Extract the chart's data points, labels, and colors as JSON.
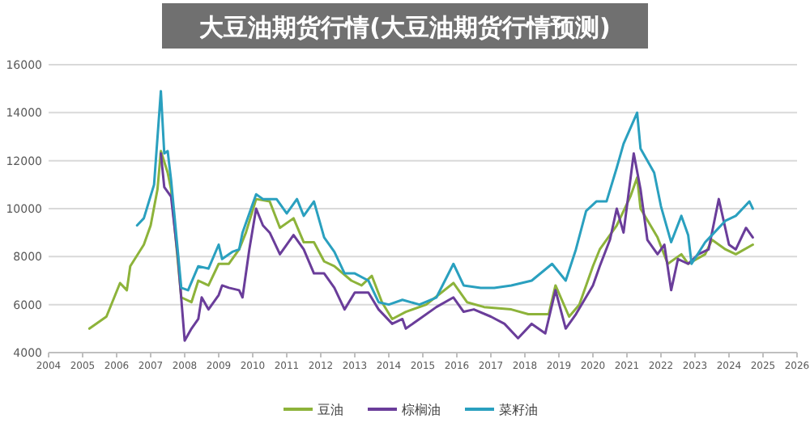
{
  "chart_data": {
    "type": "line",
    "title": "大豆油期货行情(大豆油期货行情预测)",
    "xlim": [
      2004,
      2026
    ],
    "ylim": [
      4000,
      16000
    ],
    "yticks": [
      4000,
      6000,
      8000,
      10000,
      12000,
      14000,
      16000
    ],
    "xticks": [
      2004,
      2005,
      2006,
      2007,
      2008,
      2009,
      2010,
      2011,
      2012,
      2013,
      2014,
      2015,
      2016,
      2017,
      2018,
      2019,
      2020,
      2021,
      2022,
      2023,
      2024,
      2025,
      2026
    ],
    "grid": "y",
    "legend": "bottom",
    "marker": "none",
    "line_style": "solid",
    "series": [
      {
        "name": "豆油",
        "color": "#8db33a",
        "x": [
          2005.2,
          2005.7,
          2006.1,
          2006.3,
          2006.4,
          2006.8,
          2007.0,
          2007.2,
          2007.3,
          2007.5,
          2007.6,
          2007.9,
          2008.2,
          2008.4,
          2008.7,
          2009.0,
          2009.3,
          2009.6,
          2009.8,
          2010.1,
          2010.5,
          2010.8,
          2011.2,
          2011.5,
          2011.8,
          2012.1,
          2012.4,
          2012.9,
          2013.2,
          2013.5,
          2013.8,
          2014.1,
          2014.5,
          2015.1,
          2015.9,
          2016.3,
          2016.8,
          2017.6,
          2018.1,
          2018.7,
          2018.9,
          2019.3,
          2019.6,
          2020.0,
          2020.2,
          2020.7,
          2021.1,
          2021.3,
          2021.4,
          2021.9,
          2022.2,
          2022.6,
          2022.8,
          2023.3,
          2023.5,
          2023.9,
          2024.2,
          2024.7
        ],
        "values": [
          5000,
          5500,
          6900,
          6600,
          7600,
          8500,
          9300,
          10800,
          12400,
          11500,
          10800,
          6300,
          6100,
          7000,
          6800,
          7700,
          7700,
          8300,
          9000,
          10400,
          10300,
          9200,
          9600,
          8600,
          8600,
          7800,
          7600,
          7000,
          6800,
          7200,
          6100,
          5400,
          5700,
          6000,
          6900,
          6100,
          5900,
          5800,
          5600,
          5600,
          6800,
          5500,
          6000,
          7600,
          8300,
          9300,
          10500,
          11300,
          10000,
          8800,
          7700,
          8100,
          7700,
          8100,
          8700,
          8300,
          8100,
          8500
        ]
      },
      {
        "name": "棕榈油",
        "color": "#6a3d9a",
        "x": [
          2007.3,
          2007.4,
          2007.6,
          2007.8,
          2008.0,
          2008.2,
          2008.4,
          2008.5,
          2008.7,
          2009.0,
          2009.1,
          2009.3,
          2009.6,
          2009.7,
          2009.9,
          2010.1,
          2010.3,
          2010.5,
          2010.8,
          2011.2,
          2011.5,
          2011.8,
          2012.1,
          2012.4,
          2012.7,
          2013.0,
          2013.4,
          2013.7,
          2014.1,
          2014.4,
          2014.5,
          2014.9,
          2015.4,
          2015.9,
          2016.2,
          2016.5,
          2017.0,
          2017.4,
          2017.8,
          2018.2,
          2018.6,
          2018.9,
          2019.2,
          2019.5,
          2020.0,
          2020.2,
          2020.5,
          2020.7,
          2020.9,
          2021.2,
          2021.4,
          2021.6,
          2021.9,
          2022.1,
          2022.3,
          2022.5,
          2022.8,
          2023.1,
          2023.4,
          2023.7,
          2024.0,
          2024.2,
          2024.5,
          2024.7
        ],
        "values": [
          12300,
          10900,
          10500,
          8000,
          4500,
          5000,
          5400,
          6300,
          5800,
          6400,
          6800,
          6700,
          6600,
          6300,
          8300,
          10000,
          9300,
          9000,
          8100,
          8900,
          8300,
          7300,
          7300,
          6700,
          5800,
          6500,
          6500,
          5800,
          5200,
          5400,
          5000,
          5400,
          5900,
          6300,
          5700,
          5800,
          5500,
          5200,
          4600,
          5200,
          4800,
          6600,
          5000,
          5600,
          6800,
          7600,
          8700,
          10000,
          9000,
          12300,
          10800,
          8700,
          8100,
          8500,
          6600,
          7900,
          7700,
          8100,
          8300,
          10400,
          8500,
          8300,
          9200,
          8800
        ]
      },
      {
        "name": "菜籽油",
        "color": "#2aa0bf",
        "x": [
          2006.6,
          2006.8,
          2007.1,
          2007.3,
          2007.4,
          2007.5,
          2007.6,
          2007.9,
          2008.1,
          2008.4,
          2008.7,
          2009.0,
          2009.1,
          2009.4,
          2009.6,
          2009.7,
          2010.1,
          2010.3,
          2010.7,
          2011.0,
          2011.3,
          2011.5,
          2011.8,
          2012.1,
          2012.4,
          2012.7,
          2013.0,
          2013.4,
          2013.7,
          2014.0,
          2014.4,
          2014.9,
          2015.4,
          2015.9,
          2016.2,
          2016.7,
          2017.1,
          2017.6,
          2018.2,
          2018.8,
          2019.2,
          2019.5,
          2019.8,
          2020.1,
          2020.4,
          2020.7,
          2020.9,
          2021.3,
          2021.4,
          2021.8,
          2022.0,
          2022.3,
          2022.6,
          2022.8,
          2022.9,
          2023.3,
          2023.5,
          2023.9,
          2024.2,
          2024.6,
          2024.7
        ],
        "values": [
          9300,
          9600,
          11000,
          14900,
          12300,
          12400,
          11200,
          6700,
          6600,
          7600,
          7500,
          8500,
          7900,
          8200,
          8300,
          9000,
          10600,
          10400,
          10400,
          9800,
          10400,
          9700,
          10300,
          8800,
          8200,
          7300,
          7300,
          7000,
          6100,
          6000,
          6200,
          6000,
          6300,
          7700,
          6800,
          6700,
          6700,
          6800,
          7000,
          7700,
          7000,
          8300,
          9900,
          10300,
          10300,
          11700,
          12700,
          14000,
          12500,
          11500,
          10100,
          8600,
          9700,
          8900,
          7700,
          8600,
          8900,
          9500,
          9700,
          10300,
          10000
        ]
      }
    ]
  }
}
